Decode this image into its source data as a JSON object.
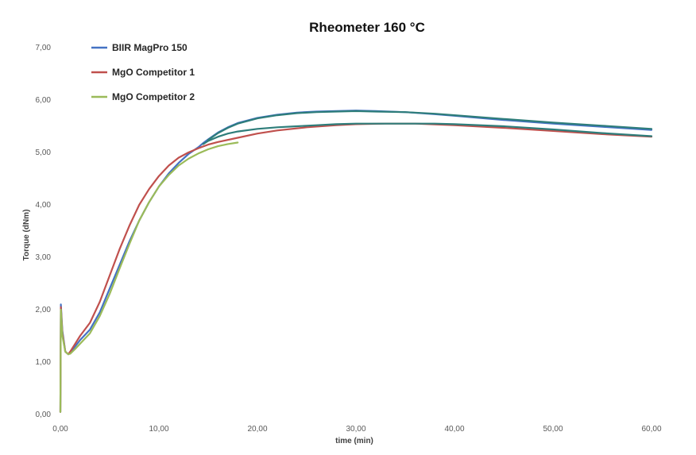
{
  "chart_data": {
    "type": "line",
    "title": "Rheometer 160 °C",
    "xlabel": "time (min)",
    "ylabel": "Torque (dNm)",
    "xlim": [
      0,
      60
    ],
    "ylim": [
      0,
      7
    ],
    "xticks": [
      0,
      10,
      20,
      30,
      40,
      50,
      60
    ],
    "yticks": [
      0,
      1,
      2,
      3,
      4,
      5,
      6,
      7
    ],
    "xtick_labels": [
      "0,00",
      "10,00",
      "20,00",
      "30,00",
      "40,00",
      "50,00",
      "60,00"
    ],
    "ytick_labels": [
      "0,00",
      "1,00",
      "2,00",
      "3,00",
      "4,00",
      "5,00",
      "6,00",
      "7,00"
    ],
    "grid": false,
    "legend_position": "top-left",
    "series": [
      {
        "name": "BIIR MagPro 150",
        "color": "#4472c4",
        "x": [
          0,
          0.05,
          0.2,
          0.5,
          0.8,
          1,
          1.5,
          2,
          3,
          4,
          5,
          6,
          7,
          8,
          9,
          10,
          11,
          12,
          13,
          14,
          14.5,
          15,
          16,
          17,
          18,
          20,
          22,
          24,
          26,
          28,
          30,
          32,
          35,
          38,
          40,
          45,
          50,
          55,
          60
        ],
        "y": [
          0.05,
          2.1,
          1.6,
          1.2,
          1.15,
          1.18,
          1.3,
          1.42,
          1.62,
          1.95,
          2.4,
          2.85,
          3.3,
          3.7,
          4.05,
          4.35,
          4.6,
          4.8,
          4.97,
          5.1,
          5.18,
          5.25,
          5.38,
          5.48,
          5.56,
          5.66,
          5.72,
          5.76,
          5.78,
          5.79,
          5.8,
          5.79,
          5.77,
          5.73,
          5.7,
          5.62,
          5.55,
          5.49,
          5.43
        ]
      },
      {
        "name": "MgO Competitor 1",
        "color": "#c0504d",
        "x": [
          0,
          0.05,
          0.2,
          0.5,
          0.8,
          1,
          1.5,
          2,
          3,
          4,
          5,
          6,
          7,
          8,
          9,
          10,
          11,
          12,
          13,
          14,
          15,
          16,
          18,
          20,
          22,
          25,
          28,
          30,
          33,
          36,
          40,
          45,
          50,
          55,
          60
        ],
        "y": [
          0.05,
          2.05,
          1.55,
          1.2,
          1.15,
          1.2,
          1.35,
          1.5,
          1.75,
          2.15,
          2.65,
          3.15,
          3.6,
          4.0,
          4.3,
          4.55,
          4.75,
          4.9,
          5.0,
          5.08,
          5.15,
          5.2,
          5.28,
          5.36,
          5.42,
          5.48,
          5.52,
          5.54,
          5.55,
          5.55,
          5.52,
          5.47,
          5.41,
          5.35,
          5.3
        ]
      },
      {
        "name": "MgO Competitor 2",
        "color": "#9bbb59",
        "x": [
          0,
          0.05,
          0.2,
          0.5,
          0.8,
          1,
          1.5,
          2,
          3,
          4,
          5,
          6,
          7,
          8,
          9,
          10,
          11,
          12,
          13,
          14,
          15,
          16,
          17,
          18
        ],
        "y": [
          0.05,
          2.0,
          1.5,
          1.2,
          1.15,
          1.16,
          1.25,
          1.35,
          1.55,
          1.88,
          2.3,
          2.78,
          3.25,
          3.7,
          4.05,
          4.35,
          4.57,
          4.75,
          4.88,
          4.98,
          5.06,
          5.12,
          5.16,
          5.19
        ]
      },
      {
        "name": "",
        "color": "#2e7d7a",
        "x": [
          14.5,
          15,
          16,
          17,
          18,
          20,
          22,
          24,
          26,
          28,
          30,
          32,
          35,
          38,
          40,
          45,
          50,
          55,
          60
        ],
        "y": [
          5.16,
          5.22,
          5.3,
          5.36,
          5.4,
          5.45,
          5.48,
          5.5,
          5.52,
          5.54,
          5.55,
          5.55,
          5.55,
          5.55,
          5.54,
          5.5,
          5.44,
          5.37,
          5.31
        ]
      },
      {
        "name": "",
        "color": "#2e7d7a",
        "x": [
          15,
          16,
          17,
          18,
          20,
          22,
          24,
          26,
          28,
          30,
          32,
          35,
          38,
          40,
          45,
          50,
          55,
          60
        ],
        "y": [
          5.24,
          5.37,
          5.47,
          5.55,
          5.65,
          5.71,
          5.75,
          5.77,
          5.78,
          5.79,
          5.78,
          5.77,
          5.74,
          5.71,
          5.64,
          5.57,
          5.51,
          5.45
        ]
      }
    ]
  }
}
